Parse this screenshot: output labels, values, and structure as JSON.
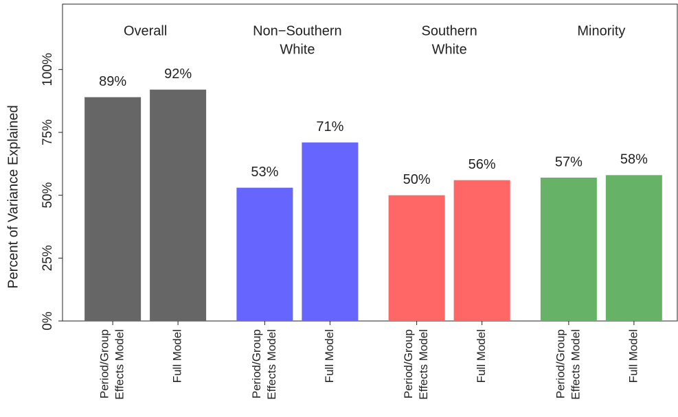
{
  "chart_data": {
    "type": "grouped_bar",
    "ylabel": "Percent of Variance Explained",
    "ylim": [
      0,
      126
    ],
    "yticks": [
      {
        "value": 0,
        "label": "0%"
      },
      {
        "value": 25,
        "label": "25%"
      },
      {
        "value": 50,
        "label": "50%"
      },
      {
        "value": 75,
        "label": "75%"
      },
      {
        "value": 100,
        "label": "100%"
      }
    ],
    "groups": [
      {
        "name": [
          "Overall"
        ],
        "color": "#666666",
        "categories": [
          [
            "Period/Group",
            "Effects Model"
          ],
          [
            "Full Model"
          ]
        ],
        "values": [
          89,
          92
        ],
        "value_labels": [
          "89%",
          "92%"
        ]
      },
      {
        "name": [
          "Non−Southern",
          "White"
        ],
        "color": "#6666ff",
        "categories": [
          [
            "Period/Group",
            "Effects Model"
          ],
          [
            "Full Model"
          ]
        ],
        "values": [
          53,
          71
        ],
        "value_labels": [
          "53%",
          "71%"
        ]
      },
      {
        "name": [
          "Southern",
          "White"
        ],
        "color": "#ff6666",
        "categories": [
          [
            "Period/Group",
            "Effects Model"
          ],
          [
            "Full Model"
          ]
        ],
        "values": [
          50,
          56
        ],
        "value_labels": [
          "50%",
          "56%"
        ]
      },
      {
        "name": [
          "Minority"
        ],
        "color": "#66b266",
        "categories": [
          [
            "Period/Group",
            "Effects Model"
          ],
          [
            "Full Model"
          ]
        ],
        "values": [
          57,
          58
        ],
        "value_labels": [
          "57%",
          "58%"
        ]
      }
    ]
  }
}
